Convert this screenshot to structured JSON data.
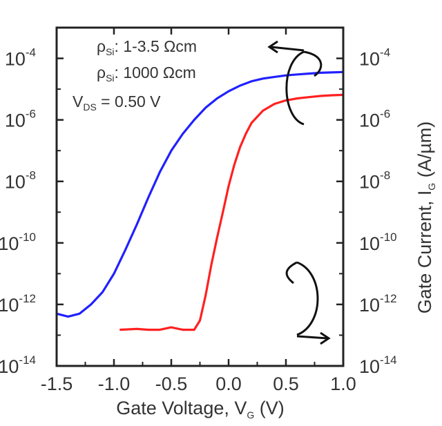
{
  "chart_data": {
    "type": "line",
    "xlabel": {
      "main": "Gate Voltage, V",
      "sub": "G",
      "unit": " (V)"
    },
    "y2label": {
      "main": "Gate Current, I",
      "sub": "G",
      "unit": " (A/µm)"
    },
    "xlim": [
      -1.5,
      1.0
    ],
    "ylim": [
      1e-14,
      0.001
    ],
    "y_scale": "log",
    "x_ticks": [
      "-1.5",
      "-1.0",
      "-0.5",
      "0.0",
      "0.5",
      "1.0"
    ],
    "y_ticks": [
      {
        "base": "10",
        "exp": "-4"
      },
      {
        "base": "10",
        "exp": "-6"
      },
      {
        "base": "10",
        "exp": "-8"
      },
      {
        "base": "10",
        "exp": "-10"
      },
      {
        "base": "10",
        "exp": "-12"
      },
      {
        "base": "10",
        "exp": "-14"
      }
    ],
    "annotations": [
      {
        "main": "ρ",
        "sub": "Si",
        "rest": ": 1-3.5 Ωcm"
      },
      {
        "main": "ρ",
        "sub": "Si",
        "rest": ": 1000 Ωcm"
      },
      {
        "main": "V",
        "sub": "DS",
        "rest": " = 0.50 V"
      }
    ],
    "series": [
      {
        "color": "#2020ff",
        "x": [
          -1.5,
          -1.4,
          -1.3,
          -1.2,
          -1.1,
          -1.0,
          -0.9,
          -0.8,
          -0.7,
          -0.6,
          -0.5,
          -0.4,
          -0.3,
          -0.2,
          -0.1,
          0.0,
          0.1,
          0.2,
          0.3,
          0.4,
          0.5,
          0.6,
          0.7,
          0.8,
          0.9,
          1.0
        ],
        "y": [
          5e-13,
          4e-13,
          5e-13,
          1e-12,
          2.5e-12,
          1e-11,
          6e-11,
          4e-10,
          3e-09,
          2e-08,
          1e-07,
          3.5e-07,
          1e-06,
          2.5e-06,
          5e-06,
          8.5e-06,
          1.3e-05,
          1.8e-05,
          2.2e-05,
          2.5e-05,
          2.8e-05,
          3e-05,
          3.2e-05,
          3.4e-05,
          3.5e-05,
          3.6e-05
        ]
      },
      {
        "color": "#ff2020",
        "x": [
          -0.95,
          -0.8,
          -0.7,
          -0.6,
          -0.5,
          -0.4,
          -0.35,
          -0.3,
          -0.25,
          -0.2,
          -0.15,
          -0.1,
          -0.05,
          0.0,
          0.05,
          0.1,
          0.15,
          0.2,
          0.3,
          0.4,
          0.5,
          0.6,
          0.7,
          0.8,
          0.9,
          1.0
        ],
        "y": [
          1.5e-13,
          1.6e-13,
          1.5e-13,
          1.5e-13,
          1.8e-13,
          1.5e-13,
          1.5e-13,
          1.5e-13,
          3e-13,
          2e-12,
          2e-11,
          1.5e-10,
          1e-09,
          7e-09,
          3.5e-08,
          1.3e-07,
          3.5e-07,
          8e-07,
          2e-06,
          3.3e-06,
          4.3e-06,
          5e-06,
          5.5e-06,
          6e-06,
          6.3e-06,
          6.5e-06
        ]
      }
    ]
  }
}
